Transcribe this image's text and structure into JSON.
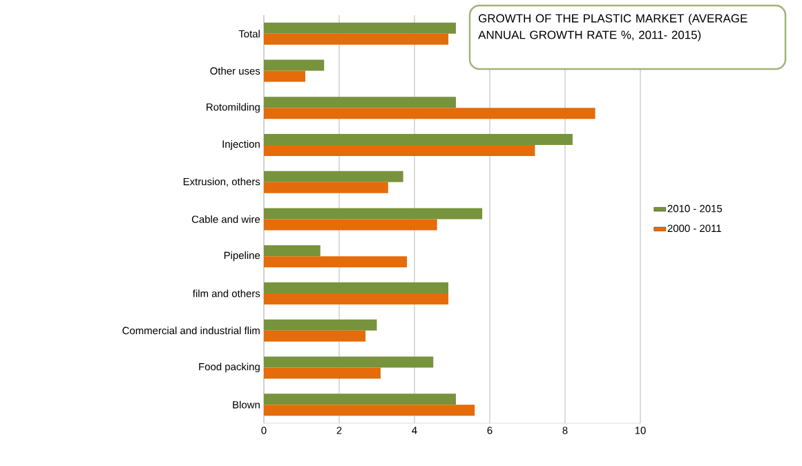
{
  "chart_data": {
    "type": "bar",
    "orientation": "horizontal",
    "title": "GROWTH OF THE PLASTIC MARKET (AVERAGE ANNUAL GROWTH RATE %, 2011- 2015)",
    "categories": [
      "Total",
      "Other uses",
      "Rotomilding",
      "Injection",
      "Extrusion, others",
      "Cable and wire",
      "Pipeline",
      "film and others",
      "Commercial and industrial flim",
      "Food packing",
      "Blown"
    ],
    "series": [
      {
        "name": "2010 - 2015",
        "color": "#77933c",
        "values": [
          5.1,
          1.6,
          5.1,
          8.2,
          3.7,
          5.8,
          1.5,
          4.9,
          3.0,
          4.5,
          5.1
        ]
      },
      {
        "name": "2000 - 2011",
        "color": "#e46c0a",
        "values": [
          4.9,
          1.1,
          8.8,
          7.2,
          3.3,
          4.6,
          3.8,
          4.9,
          2.7,
          3.1,
          5.6
        ]
      }
    ],
    "xlim": [
      0,
      10
    ],
    "xticks": [
      0,
      2,
      4,
      6,
      8,
      10
    ],
    "grid": "x",
    "legend": "right"
  }
}
